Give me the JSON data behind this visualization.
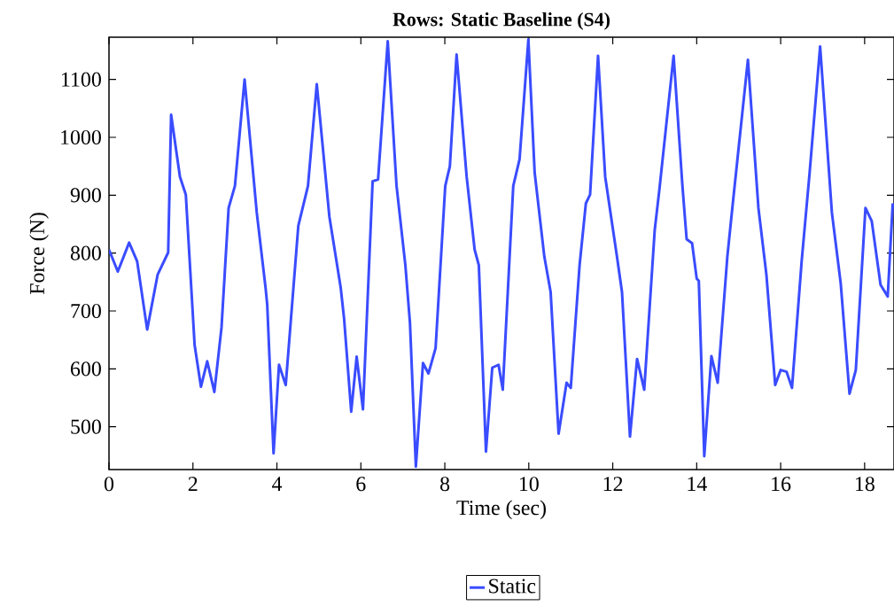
{
  "chart_data": {
    "type": "line",
    "title": "Rows: Static Baseline (S4)",
    "xlabel": "Time (sec)",
    "ylabel": "Force (N)",
    "x": [
      0,
      0.21,
      0.48,
      0.67,
      0.91,
      1.16,
      1.41,
      1.48,
      1.69,
      1.83,
      2.04,
      2.19,
      2.34,
      2.51,
      2.68,
      2.85,
      3.0,
      3.23,
      3.52,
      3.73,
      3.77,
      3.92,
      4.05,
      4.21,
      4.51,
      4.74,
      4.95,
      5.25,
      5.52,
      5.6,
      5.77,
      5.9,
      6.05,
      6.28,
      6.41,
      6.64,
      6.85,
      7.06,
      7.17,
      7.31,
      7.48,
      7.61,
      7.78,
      8.01,
      8.12,
      8.28,
      8.52,
      8.71,
      8.81,
      8.98,
      9.13,
      9.28,
      9.38,
      9.63,
      9.78,
      9.99,
      10.14,
      10.37,
      10.52,
      10.71,
      10.9,
      11.0,
      11.21,
      11.36,
      11.46,
      11.65,
      11.82,
      12.1,
      12.22,
      12.41,
      12.58,
      12.75,
      13.0,
      13.11,
      13.45,
      13.66,
      13.76,
      13.89,
      14.0,
      14.05,
      14.18,
      14.35,
      14.5,
      14.73,
      14.86,
      15.22,
      15.47,
      15.66,
      15.87,
      16.0,
      16.14,
      16.27,
      16.5,
      16.69,
      16.94,
      17.22,
      17.43,
      17.64,
      17.79,
      18.02,
      18.17,
      18.38,
      18.55,
      18.67
    ],
    "series": [
      {
        "name": "Static",
        "color": "#3a4cff",
        "values": [
          806,
          768,
          818,
          786,
          668,
          763,
          801,
          1039,
          932,
          901,
          641,
          569,
          613,
          560,
          671,
          878,
          916,
          1100,
          870,
          740,
          710,
          454,
          607,
          572,
          847,
          916,
          1092,
          863,
          740,
          687,
          526,
          621,
          530,
          924,
          927,
          1166,
          916,
          779,
          679,
          431,
          610,
          592,
          636,
          916,
          950,
          1143,
          932,
          806,
          779,
          457,
          602,
          607,
          564,
          916,
          962,
          1169,
          939,
          794,
          733,
          488,
          576,
          567,
          779,
          886,
          901,
          1141,
          932,
          794,
          733,
          483,
          617,
          564,
          840,
          909,
          1141,
          916,
          824,
          817,
          756,
          752,
          449,
          622,
          576,
          794,
          886,
          1134,
          878,
          763,
          572,
          598,
          595,
          567,
          786,
          939,
          1157,
          870,
          748,
          557,
          598,
          878,
          855,
          745,
          725,
          886
        ]
      }
    ],
    "xlim": [
      0,
      18.7
    ],
    "ylim": [
      426,
      1173
    ],
    "xticks": [
      0,
      2,
      4,
      6,
      8,
      10,
      12,
      14,
      16,
      18
    ],
    "yticks": [
      500,
      600,
      700,
      800,
      900,
      1000,
      1100
    ],
    "legend": "bottom",
    "line_style": "solid"
  }
}
